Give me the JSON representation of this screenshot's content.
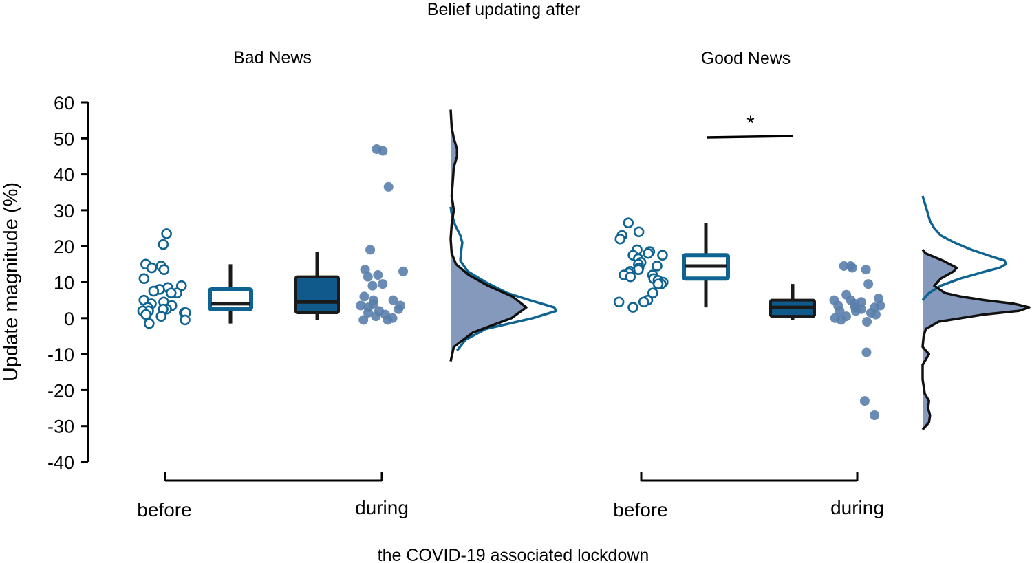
{
  "chart_data": {
    "type": "raincloud",
    "title": "Belief updating after",
    "xlabel": "the COVID-19 associated lockdown",
    "ylabel": "Update magnitude (%)",
    "ylim": [
      -40,
      60
    ],
    "yticks": [
      60,
      50,
      40,
      30,
      20,
      10,
      0,
      -10,
      -20,
      -30,
      -40
    ],
    "colors": {
      "before_stroke": "#0f6390",
      "during_fill": "#0f5a8a",
      "during_points": "#5a7eab",
      "density_fill": "#8599bd",
      "density_line_before": "#0f6390",
      "density_line_during": "#111111",
      "box_median": "#1a1a1a"
    },
    "panels": [
      {
        "name": "Bad News",
        "x_categories": [
          "before",
          "during"
        ],
        "significance": "",
        "groups": [
          {
            "label": "before",
            "box": {
              "min": -1.5,
              "q1": 2.5,
              "median": 4.0,
              "q3": 8.0,
              "max": 15.0
            },
            "points": [
              20.5,
              23.5,
              15.0,
              14.0,
              14.5,
              13.5,
              11.0,
              9.0,
              8.5,
              8.0,
              7.5,
              7.0,
              7.0,
              5.0,
              4.5,
              4.0,
              3.5,
              3.0,
              2.5,
              2.5,
              2.0,
              2.0,
              1.5,
              1.5,
              1.0,
              0.5,
              -0.5,
              -1.5
            ]
          },
          {
            "label": "during",
            "box": {
              "min": -0.5,
              "q1": 1.5,
              "median": 4.5,
              "q3": 11.5,
              "max": 18.5
            },
            "points": [
              47.0,
              46.5,
              36.5,
              19.0,
              13.5,
              13.0,
              12.0,
              11.5,
              9.5,
              9.0,
              6.0,
              5.0,
              5.0,
              4.0,
              3.5,
              3.5,
              3.0,
              2.5,
              2.0,
              1.5,
              1.0,
              0.5,
              0.0,
              -0.5,
              -0.5
            ]
          }
        ],
        "density": {
          "before": [
            [
              -9,
              0.06
            ],
            [
              -6,
              0.14
            ],
            [
              -3,
              0.33
            ],
            [
              0,
              0.77
            ],
            [
              2,
              0.99
            ],
            [
              3,
              0.97
            ],
            [
              5,
              0.74
            ],
            [
              7,
              0.53
            ],
            [
              10,
              0.33
            ],
            [
              13,
              0.16
            ],
            [
              16,
              0.09
            ],
            [
              19,
              0.1
            ],
            [
              21,
              0.11
            ],
            [
              23,
              0.09
            ],
            [
              26,
              0.04
            ],
            [
              29,
              0.01
            ],
            [
              31,
              0.0
            ]
          ],
          "during": [
            [
              -12,
              0.0
            ],
            [
              -8,
              0.03
            ],
            [
              -4,
              0.21
            ],
            [
              0,
              0.57
            ],
            [
              3,
              0.71
            ],
            [
              6,
              0.58
            ],
            [
              9,
              0.35
            ],
            [
              12,
              0.17
            ],
            [
              15,
              0.05
            ],
            [
              18,
              0.01
            ],
            [
              22,
              0.0
            ],
            [
              26,
              0.01
            ],
            [
              30,
              0.03
            ],
            [
              34,
              0.01
            ],
            [
              38,
              0.02
            ],
            [
              42,
              0.03
            ],
            [
              45,
              0.06
            ],
            [
              47,
              0.06
            ],
            [
              50,
              0.03
            ],
            [
              53,
              0.01
            ],
            [
              58,
              0.0
            ]
          ]
        }
      },
      {
        "name": "Good News",
        "x_categories": [
          "before",
          "during"
        ],
        "significance": "*",
        "groups": [
          {
            "label": "before",
            "box": {
              "min": 3.0,
              "q1": 11.0,
              "median": 14.5,
              "q3": 17.5,
              "max": 26.5
            },
            "points": [
              26.5,
              24.0,
              23.0,
              22.0,
              19.0,
              18.5,
              18.0,
              17.5,
              17.5,
              16.5,
              15.5,
              15.0,
              14.5,
              14.0,
              13.5,
              13.0,
              12.5,
              12.0,
              12.0,
              11.5,
              11.0,
              10.5,
              10.0,
              9.5,
              9.5,
              7.0,
              5.0,
              4.5,
              4.5,
              3.0
            ]
          },
          {
            "label": "during",
            "box": {
              "min": -0.5,
              "q1": 0.5,
              "median": 3.0,
              "q3": 5.0,
              "max": 9.5
            },
            "points": [
              14.5,
              14.5,
              14.0,
              13.5,
              9.5,
              6.5,
              5.5,
              5.0,
              5.0,
              4.5,
              4.0,
              3.5,
              3.5,
              3.0,
              3.0,
              2.5,
              2.0,
              2.0,
              1.5,
              1.0,
              0.5,
              0.0,
              -0.5,
              -1.0,
              -9.5,
              -23.0,
              -27.0
            ]
          }
        ],
        "density": {
          "before": [
            [
              5,
              0.0
            ],
            [
              7,
              0.06
            ],
            [
              9,
              0.17
            ],
            [
              11,
              0.35
            ],
            [
              13,
              0.59
            ],
            [
              14,
              0.72
            ],
            [
              15,
              0.78
            ],
            [
              16,
              0.77
            ],
            [
              17,
              0.66
            ],
            [
              19,
              0.46
            ],
            [
              21,
              0.3
            ],
            [
              23,
              0.17
            ],
            [
              25,
              0.11
            ],
            [
              27,
              0.07
            ],
            [
              29,
              0.05
            ],
            [
              31,
              0.03
            ],
            [
              33,
              0.01
            ],
            [
              34,
              0.0
            ]
          ],
          "during": [
            [
              -31,
              0.0
            ],
            [
              -29,
              0.06
            ],
            [
              -27,
              0.07
            ],
            [
              -25,
              0.05
            ],
            [
              -23,
              0.06
            ],
            [
              -21,
              0.02
            ],
            [
              -17,
              0.0
            ],
            [
              -13,
              0.0
            ],
            [
              -10,
              0.06
            ],
            [
              -8,
              0.0
            ],
            [
              -5,
              0.01
            ],
            [
              -3,
              0.03
            ],
            [
              -1,
              0.15
            ],
            [
              1,
              0.57
            ],
            [
              2,
              0.9
            ],
            [
              3,
              1.0
            ],
            [
              4,
              0.86
            ],
            [
              5,
              0.58
            ],
            [
              6,
              0.36
            ],
            [
              7,
              0.21
            ],
            [
              9,
              0.11
            ],
            [
              11,
              0.17
            ],
            [
              13,
              0.29
            ],
            [
              14,
              0.32
            ],
            [
              16,
              0.19
            ],
            [
              18,
              0.03
            ],
            [
              19,
              0.0
            ]
          ]
        }
      }
    ]
  }
}
